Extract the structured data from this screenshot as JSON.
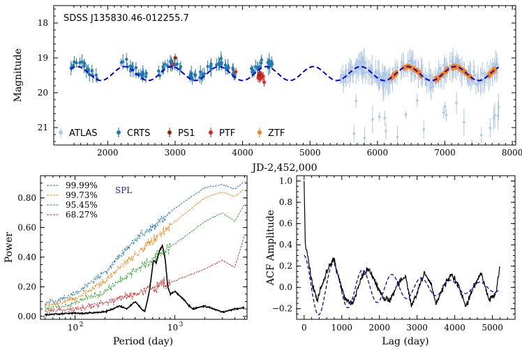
{
  "chart_data": [
    {
      "type": "scatter",
      "panel": "top",
      "title": "SDSS J135830.46-012255.7",
      "xlabel": "JD-2,452,000",
      "ylabel": "Magnitude",
      "xlim": [
        1200,
        8050
      ],
      "ylim": [
        21.5,
        17.5
      ],
      "y_inverted": true,
      "xticks": [
        2000,
        3000,
        4000,
        5000,
        6000,
        7000,
        8000
      ],
      "yticks": [
        18,
        19,
        20,
        21
      ],
      "legend": {
        "position": "bottom-left",
        "entries": [
          "ATLAS",
          "CRTS",
          "PS1",
          "PTF",
          "ZTF"
        ]
      },
      "series": [
        {
          "name": "ATLAS",
          "color": "#aec7e8",
          "x_range": [
            5450,
            7800
          ],
          "values": [
            19.3,
            19.5,
            19.7,
            19.4,
            19.6,
            19.8,
            19.5,
            19.2,
            19.6,
            19.9,
            19.4,
            19.3
          ]
        },
        {
          "name": "CRTS",
          "color": "#1f77b4",
          "x_range": [
            1450,
            4450
          ],
          "values": [
            19.4,
            19.7,
            19.9,
            19.3,
            19.1,
            19.3,
            19.6,
            19.0,
            18.8,
            19.2,
            19.6,
            19.3,
            19.1,
            19.4,
            19.8,
            19.5,
            19.6,
            19.9
          ]
        },
        {
          "name": "PS1",
          "color": "#8c2d04",
          "points": [
            [
              3000,
              19.0
            ],
            [
              4250,
              19.5
            ]
          ]
        },
        {
          "name": "PTF",
          "color": "#d62728",
          "points": [
            [
              2960,
              19.2
            ],
            [
              3000,
              19.0
            ],
            [
              3900,
              19.4
            ],
            [
              4250,
              19.6
            ],
            [
              4320,
              19.7
            ]
          ]
        },
        {
          "name": "ZTF",
          "color": "#ff7f0e",
          "x_range": [
            6200,
            7750
          ],
          "values": [
            19.7,
            19.4,
            19.2,
            19.3,
            19.5,
            19.8,
            19.6,
            19.3,
            19.1,
            19.2,
            19.4,
            19.6
          ]
        },
        {
          "name": "model",
          "style": "dashed",
          "color": "#0000dd",
          "type": "sinusoid",
          "mean": 19.45,
          "amplitude": 0.2,
          "period": 700,
          "phase_ref": 1900
        }
      ]
    },
    {
      "type": "line",
      "panel": "bottom-left",
      "xlabel": "Period (day)",
      "ylabel": "Power",
      "xscale": "log",
      "xlim": [
        45,
        5300
      ],
      "ylim": [
        -0.02,
        0.95
      ],
      "xticks": [
        100,
        1000
      ],
      "xtick_labels": [
        "10",
        "10"
      ],
      "xtick_exponents": [
        "2",
        "3"
      ],
      "yticks": [
        0.0,
        0.2,
        0.4,
        0.6,
        0.8
      ],
      "ytick_labels": [
        "0.00",
        "0.20",
        "0.40",
        "0.60",
        "0.80"
      ],
      "annotation": "SPL",
      "legend": {
        "position": "top-left",
        "entries": [
          "99.99%",
          "99.73%",
          "95.45%",
          "68.27%"
        ]
      },
      "series": [
        {
          "name": "99.99%",
          "color": "#1f77b4",
          "style": "dashed",
          "x": [
            50,
            100,
            200,
            400,
            700,
            1000,
            2000,
            3000,
            4000,
            5000
          ],
          "values": [
            0.09,
            0.15,
            0.3,
            0.52,
            0.64,
            0.73,
            0.87,
            0.89,
            0.86,
            0.91
          ]
        },
        {
          "name": "99.73%",
          "color": "#ff7f0e",
          "style": "dashed",
          "x": [
            50,
            100,
            200,
            400,
            700,
            1000,
            2000,
            3000,
            4000,
            5000
          ],
          "values": [
            0.07,
            0.12,
            0.24,
            0.42,
            0.55,
            0.64,
            0.8,
            0.84,
            0.81,
            0.86
          ]
        },
        {
          "name": "95.45%",
          "color": "#2ca02c",
          "style": "dashed",
          "x": [
            50,
            100,
            200,
            400,
            700,
            1000,
            2000,
            3000,
            4000,
            5000
          ],
          "values": [
            0.05,
            0.09,
            0.17,
            0.31,
            0.42,
            0.49,
            0.64,
            0.7,
            0.64,
            0.76
          ]
        },
        {
          "name": "68.27%",
          "color": "#d62728",
          "style": "dashed",
          "x": [
            50,
            100,
            200,
            400,
            700,
            1000,
            2000,
            3000,
            4000,
            5000
          ],
          "values": [
            0.03,
            0.05,
            0.09,
            0.15,
            0.21,
            0.24,
            0.32,
            0.38,
            0.33,
            0.55
          ]
        },
        {
          "name": "SPL",
          "color": "#000000",
          "style": "solid",
          "x": [
            50,
            80,
            120,
            200,
            280,
            330,
            400,
            450,
            500,
            560,
            610,
            650,
            700,
            750,
            800,
            850,
            900,
            1000,
            1200,
            1500,
            2000,
            3000,
            4000,
            5000
          ],
          "values": [
            0.01,
            0.02,
            0.02,
            0.03,
            0.07,
            0.05,
            0.1,
            0.06,
            0.03,
            0.18,
            0.38,
            0.36,
            0.44,
            0.48,
            0.39,
            0.2,
            0.15,
            0.17,
            0.12,
            0.05,
            0.07,
            0.03,
            0.05,
            0.06
          ]
        }
      ]
    },
    {
      "type": "line",
      "panel": "bottom-right",
      "xlabel": "Lag (day)",
      "ylabel": "ACF Amplitude",
      "xlim": [
        -200,
        5600
      ],
      "ylim": [
        -0.3,
        1.05
      ],
      "xticks": [
        0,
        1000,
        2000,
        3000,
        4000,
        5000
      ],
      "yticks": [
        -0.2,
        0.0,
        0.2,
        0.4,
        0.6,
        0.8,
        1.0
      ],
      "ytick_labels": [
        "−0.2",
        "0.0",
        "0.2",
        "0.4",
        "0.6",
        "0.8",
        "1.0"
      ],
      "series": [
        {
          "name": "ACF",
          "color": "#000000",
          "style": "solid",
          "x": [
            0,
            30,
            100,
            200,
            350,
            500,
            700,
            800,
            950,
            1100,
            1300,
            1500,
            1700,
            1900,
            2100,
            2300,
            2500,
            2700,
            2850,
            3000,
            3200,
            3350,
            3500,
            3700,
            3900,
            4100,
            4300,
            4500,
            4700,
            4900,
            5100,
            5200
          ],
          "values": [
            1.0,
            0.4,
            0.3,
            0.05,
            -0.12,
            0.05,
            0.24,
            0.25,
            0.05,
            -0.12,
            -0.15,
            0.08,
            0.18,
            0.05,
            -0.1,
            -0.12,
            0.05,
            0.1,
            -0.18,
            -0.05,
            0.15,
            0.05,
            -0.15,
            0.0,
            0.12,
            0.02,
            -0.18,
            0.0,
            0.15,
            -0.12,
            -0.05,
            0.2
          ]
        },
        {
          "name": "model",
          "color": "#0000dd",
          "style": "dashed",
          "type": "damped-cosine",
          "amplitude": 0.3,
          "period": 740,
          "decay": 2600
        }
      ]
    }
  ]
}
